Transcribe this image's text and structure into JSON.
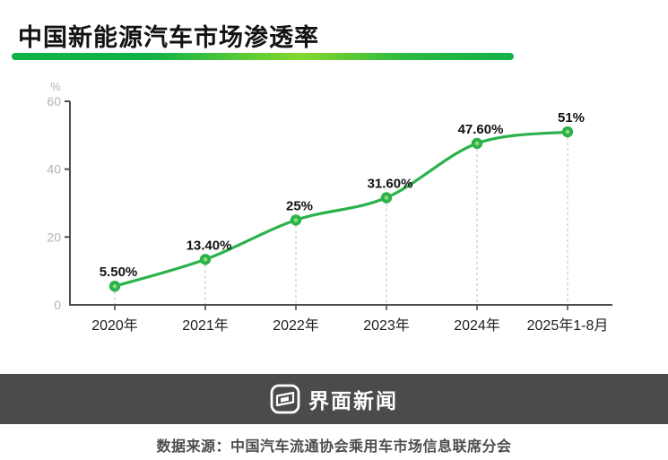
{
  "header": {
    "title": "中国新能源汽车市场渗透率"
  },
  "chart_data": {
    "type": "line",
    "title": "中国新能源汽车市场渗透率",
    "categories": [
      "2020年",
      "2021年",
      "2022年",
      "2023年",
      "2024年",
      "2025年1-8月"
    ],
    "values": [
      5.5,
      13.4,
      25,
      31.6,
      47.6,
      51
    ],
    "point_labels": [
      "5.50%",
      "13.40%",
      "25%",
      "31.60%",
      "47.60%",
      "51%"
    ],
    "unit_label": "%",
    "y_ticks": [
      0,
      20,
      40,
      60
    ],
    "ylim": [
      0,
      60
    ],
    "xlabel": "",
    "ylabel": "%",
    "legend": "none",
    "grid": "vertical dashed droplines from each point to x-axis",
    "line_color": "#2bb24c",
    "marker_color": "#2bb24c",
    "marker_inner_color": "#8fdd74",
    "dropline_color": "#c9c9c9",
    "axis_color": "#4d4d4d",
    "y_tick_color": "#b3b3b3",
    "x_tick_color": "#1f1f1f",
    "label_color": "#111111"
  },
  "footer": {
    "brand": "界面新闻",
    "source": "数据来源：中国汽车流通协会乘用车市场信息联席分会"
  },
  "colors": {
    "accent_green": "#12b148",
    "accent_light_green": "#85d72c",
    "banner_bg": "#4b4b4b"
  }
}
